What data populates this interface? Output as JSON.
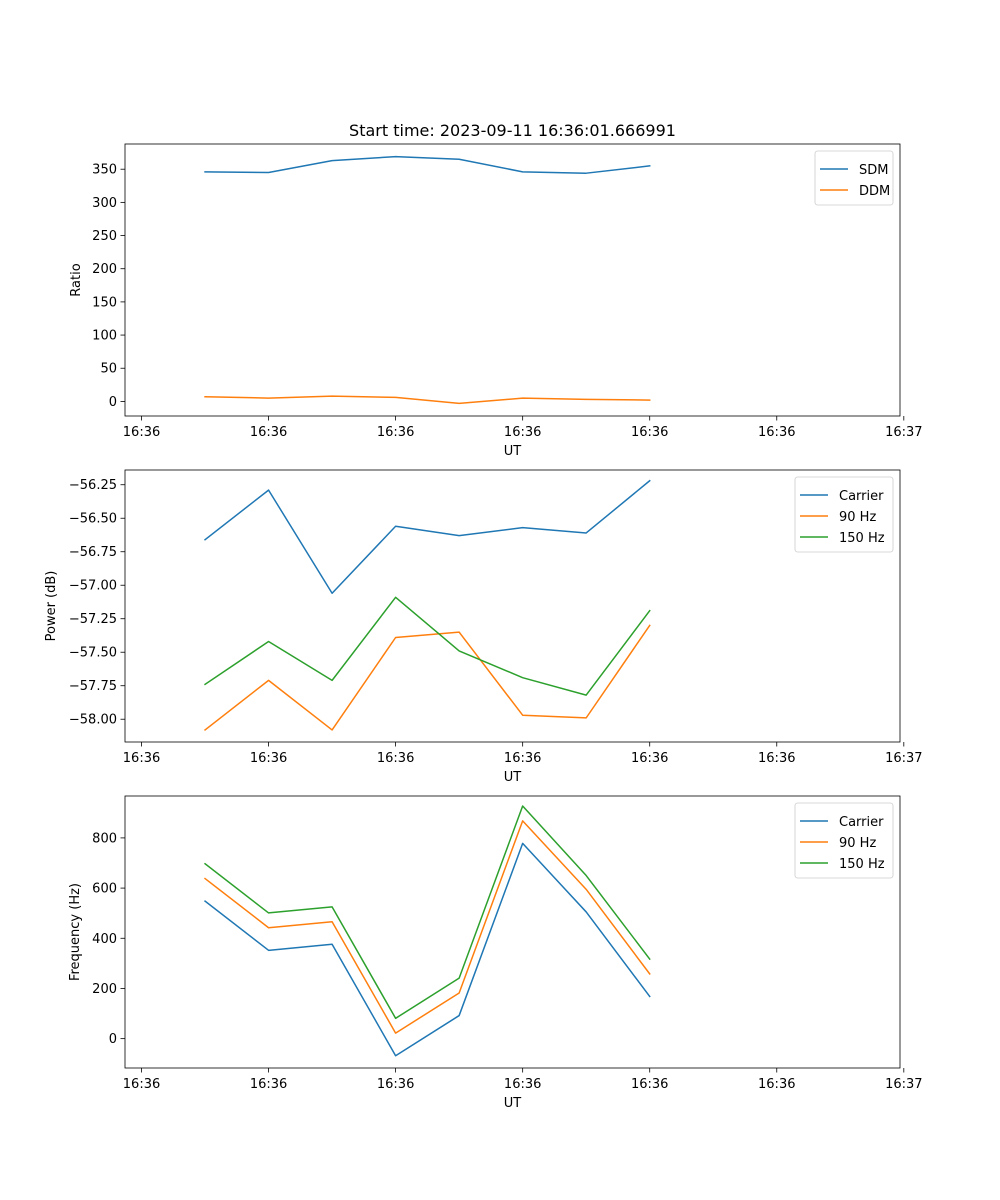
{
  "chart_data": [
    {
      "type": "line",
      "title": "Start time: 2023-09-11 16:36:01.666991",
      "xlabel": "UT",
      "ylabel": "Ratio",
      "legend_position": "top-right",
      "x": [
        0.5,
        1.0,
        1.5,
        2.0,
        2.5,
        3.0,
        3.5,
        4.0
      ],
      "xlim": [
        -0.13,
        5.97
      ],
      "xticks": [
        0,
        1,
        2,
        3,
        4,
        5,
        6
      ],
      "xtick_labels": [
        "16:36",
        "16:36",
        "16:36",
        "16:36",
        "16:36",
        "16:36",
        "16:37"
      ],
      "ylim": [
        -22,
        388
      ],
      "yticks": [
        0,
        50,
        100,
        150,
        200,
        250,
        300,
        350
      ],
      "ytick_labels": [
        "0",
        "50",
        "100",
        "150",
        "200",
        "250",
        "300",
        "350"
      ],
      "series": [
        {
          "name": "SDM",
          "color": "#1f77b4",
          "values": [
            346,
            345,
            363,
            369,
            365,
            346,
            344,
            355
          ]
        },
        {
          "name": "DDM",
          "color": "#ff7f0e",
          "values": [
            7,
            5,
            8,
            6,
            -3,
            5,
            3,
            2
          ]
        }
      ]
    },
    {
      "type": "line",
      "title": "",
      "xlabel": "UT",
      "ylabel": "Power (dB)",
      "legend_position": "top-right",
      "x": [
        0.5,
        1.0,
        1.5,
        2.0,
        2.5,
        3.0,
        3.5,
        4.0
      ],
      "xlim": [
        -0.13,
        5.97
      ],
      "xticks": [
        0,
        1,
        2,
        3,
        4,
        5,
        6
      ],
      "xtick_labels": [
        "16:36",
        "16:36",
        "16:36",
        "16:36",
        "16:36",
        "16:36",
        "16:37"
      ],
      "ylim": [
        -58.17,
        -56.14
      ],
      "yticks": [
        -58.0,
        -57.75,
        -57.5,
        -57.25,
        -57.0,
        -56.75,
        -56.5,
        -56.25
      ],
      "ytick_labels": [
        "−58.00",
        "−57.75",
        "−57.50",
        "−57.25",
        "−57.00",
        "−56.75",
        "−56.50",
        "−56.25"
      ],
      "series": [
        {
          "name": "Carrier",
          "color": "#1f77b4",
          "values": [
            -56.66,
            -56.29,
            -57.06,
            -56.56,
            -56.63,
            -56.57,
            -56.61,
            -56.22
          ]
        },
        {
          "name": "90 Hz",
          "color": "#ff7f0e",
          "values": [
            -58.08,
            -57.71,
            -58.08,
            -57.39,
            -57.35,
            -57.97,
            -57.99,
            -57.3
          ]
        },
        {
          "name": "150 Hz",
          "color": "#2ca02c",
          "values": [
            -57.74,
            -57.42,
            -57.71,
            -57.09,
            -57.49,
            -57.69,
            -57.82,
            -57.19
          ]
        }
      ]
    },
    {
      "type": "line",
      "title": "",
      "xlabel": "UT",
      "ylabel": "Frequency (Hz)",
      "legend_position": "top-right",
      "x": [
        0.5,
        1.0,
        1.5,
        2.0,
        2.5,
        3.0,
        3.5,
        4.0
      ],
      "xlim": [
        -0.13,
        5.97
      ],
      "xticks": [
        0,
        1,
        2,
        3,
        4,
        5,
        6
      ],
      "xtick_labels": [
        "16:36",
        "16:36",
        "16:36",
        "16:36",
        "16:36",
        "16:36",
        "16:37"
      ],
      "ylim": [
        -117,
        967
      ],
      "yticks": [
        0,
        200,
        400,
        600,
        800
      ],
      "ytick_labels": [
        "0",
        "200",
        "400",
        "600",
        "800"
      ],
      "series": [
        {
          "name": "Carrier",
          "color": "#1f77b4",
          "values": [
            548,
            352,
            376,
            -68,
            92,
            778,
            505,
            168
          ]
        },
        {
          "name": "90 Hz",
          "color": "#ff7f0e",
          "values": [
            638,
            442,
            466,
            22,
            182,
            868,
            595,
            258
          ]
        },
        {
          "name": "150 Hz",
          "color": "#2ca02c",
          "values": [
            697,
            501,
            525,
            81,
            241,
            927,
            650,
            317
          ]
        }
      ]
    }
  ]
}
